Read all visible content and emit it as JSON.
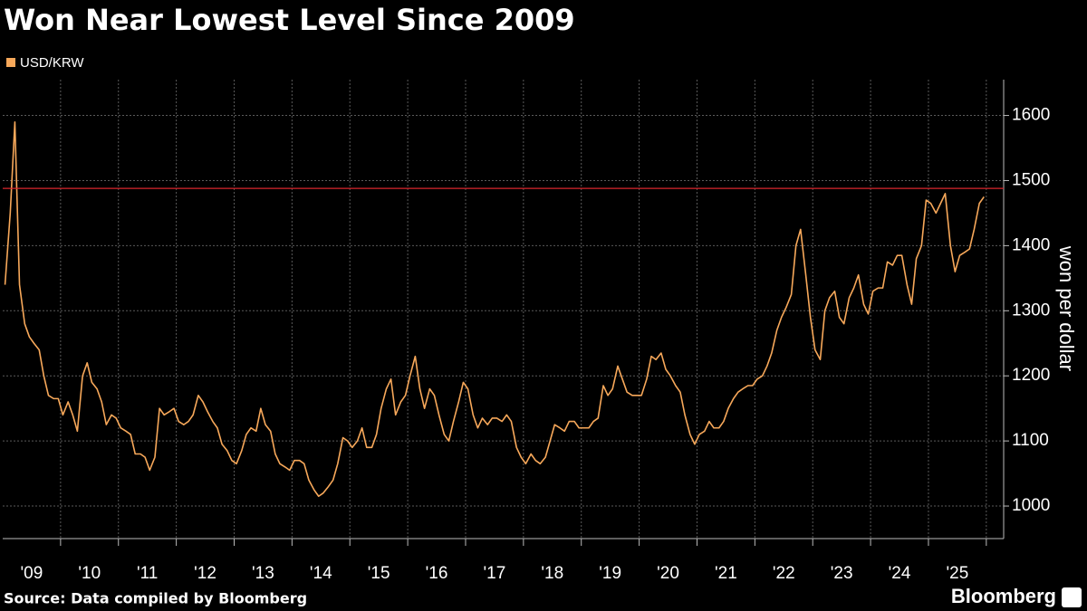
{
  "chart_data": {
    "type": "line",
    "title": "Won Near Lowest Level Since 2009",
    "y_axis_label": "won per dollar",
    "source": "Source: Data compiled by Bloomberg",
    "brand": "Bloomberg",
    "x": [
      2009.04,
      2009.13,
      2009.21,
      2009.29,
      2009.38,
      2009.46,
      2009.54,
      2009.63,
      2009.71,
      2009.79,
      2009.88,
      2009.96,
      2010.04,
      2010.13,
      2010.21,
      2010.29,
      2010.38,
      2010.46,
      2010.54,
      2010.63,
      2010.71,
      2010.79,
      2010.88,
      2010.96,
      2011.04,
      2011.13,
      2011.21,
      2011.29,
      2011.38,
      2011.46,
      2011.54,
      2011.63,
      2011.71,
      2011.79,
      2011.88,
      2011.96,
      2012.04,
      2012.13,
      2012.21,
      2012.29,
      2012.38,
      2012.46,
      2012.54,
      2012.63,
      2012.71,
      2012.79,
      2012.88,
      2012.96,
      2013.04,
      2013.13,
      2013.21,
      2013.29,
      2013.38,
      2013.46,
      2013.54,
      2013.63,
      2013.71,
      2013.79,
      2013.88,
      2013.96,
      2014.04,
      2014.13,
      2014.21,
      2014.29,
      2014.38,
      2014.46,
      2014.54,
      2014.63,
      2014.71,
      2014.79,
      2014.88,
      2014.96,
      2015.04,
      2015.13,
      2015.21,
      2015.29,
      2015.38,
      2015.46,
      2015.54,
      2015.63,
      2015.71,
      2015.79,
      2015.88,
      2015.96,
      2016.04,
      2016.13,
      2016.21,
      2016.29,
      2016.38,
      2016.46,
      2016.54,
      2016.63,
      2016.71,
      2016.79,
      2016.88,
      2016.96,
      2017.04,
      2017.13,
      2017.21,
      2017.29,
      2017.38,
      2017.46,
      2017.54,
      2017.63,
      2017.71,
      2017.79,
      2017.88,
      2017.96,
      2018.04,
      2018.13,
      2018.21,
      2018.29,
      2018.38,
      2018.46,
      2018.54,
      2018.63,
      2018.71,
      2018.79,
      2018.88,
      2018.96,
      2019.04,
      2019.13,
      2019.21,
      2019.29,
      2019.38,
      2019.46,
      2019.54,
      2019.63,
      2019.71,
      2019.79,
      2019.88,
      2019.96,
      2020.04,
      2020.13,
      2020.21,
      2020.29,
      2020.38,
      2020.46,
      2020.54,
      2020.63,
      2020.71,
      2020.79,
      2020.88,
      2020.96,
      2021.04,
      2021.13,
      2021.21,
      2021.29,
      2021.38,
      2021.46,
      2021.54,
      2021.63,
      2021.71,
      2021.79,
      2021.88,
      2021.96,
      2022.04,
      2022.13,
      2022.21,
      2022.29,
      2022.38,
      2022.46,
      2022.54,
      2022.63,
      2022.71,
      2022.79,
      2022.88,
      2022.96,
      2023.04,
      2023.13,
      2023.21,
      2023.29,
      2023.38,
      2023.46,
      2023.54,
      2023.63,
      2023.71,
      2023.79,
      2023.88,
      2023.96,
      2024.04,
      2024.13,
      2024.21,
      2024.29,
      2024.38,
      2024.46,
      2024.54,
      2024.63,
      2024.71,
      2024.79,
      2024.88,
      2024.96,
      2025.04,
      2025.13,
      2025.21,
      2025.29,
      2025.38,
      2025.46,
      2025.54,
      2025.63,
      2025.71,
      2025.79,
      2025.88,
      2025.96
    ],
    "series": [
      {
        "name": "USD/KRW",
        "color": "#f7a85a",
        "values": [
          1340,
          1450,
          1590,
          1340,
          1280,
          1260,
          1250,
          1240,
          1200,
          1170,
          1165,
          1165,
          1140,
          1160,
          1140,
          1115,
          1200,
          1220,
          1190,
          1180,
          1160,
          1125,
          1140,
          1135,
          1120,
          1115,
          1110,
          1080,
          1080,
          1075,
          1055,
          1075,
          1150,
          1140,
          1145,
          1150,
          1130,
          1125,
          1130,
          1140,
          1170,
          1160,
          1145,
          1130,
          1120,
          1095,
          1085,
          1070,
          1065,
          1085,
          1110,
          1120,
          1115,
          1150,
          1125,
          1115,
          1080,
          1065,
          1060,
          1055,
          1070,
          1070,
          1065,
          1040,
          1025,
          1015,
          1020,
          1030,
          1040,
          1065,
          1105,
          1100,
          1090,
          1100,
          1120,
          1090,
          1090,
          1110,
          1150,
          1180,
          1195,
          1140,
          1160,
          1170,
          1200,
          1230,
          1180,
          1150,
          1180,
          1170,
          1140,
          1110,
          1100,
          1130,
          1160,
          1190,
          1180,
          1140,
          1120,
          1135,
          1125,
          1135,
          1135,
          1130,
          1140,
          1130,
          1090,
          1075,
          1065,
          1080,
          1070,
          1065,
          1075,
          1100,
          1125,
          1120,
          1115,
          1130,
          1130,
          1120,
          1120,
          1120,
          1130,
          1135,
          1185,
          1170,
          1180,
          1215,
          1195,
          1175,
          1170,
          1170,
          1170,
          1195,
          1230,
          1225,
          1235,
          1210,
          1200,
          1185,
          1175,
          1140,
          1110,
          1095,
          1110,
          1115,
          1130,
          1120,
          1120,
          1130,
          1150,
          1165,
          1175,
          1180,
          1185,
          1185,
          1195,
          1200,
          1215,
          1235,
          1270,
          1290,
          1305,
          1325,
          1400,
          1425,
          1355,
          1290,
          1240,
          1225,
          1300,
          1320,
          1330,
          1290,
          1280,
          1320,
          1335,
          1355,
          1310,
          1295,
          1330,
          1335,
          1335,
          1375,
          1370,
          1385,
          1385,
          1340,
          1310,
          1380,
          1400,
          1470,
          1465,
          1450,
          1465,
          1480,
          1400,
          1360,
          1385,
          1390,
          1395,
          1425,
          1465,
          1475
        ]
      }
    ],
    "xlim": [
      2009,
      2026.3
    ],
    "xticks": [
      {
        "value": 2009.5,
        "label": "'09"
      },
      {
        "value": 2010.5,
        "label": "'10"
      },
      {
        "value": 2011.5,
        "label": "'11"
      },
      {
        "value": 2012.5,
        "label": "'12"
      },
      {
        "value": 2013.5,
        "label": "'13"
      },
      {
        "value": 2014.5,
        "label": "'14"
      },
      {
        "value": 2015.5,
        "label": "'15"
      },
      {
        "value": 2016.5,
        "label": "'16"
      },
      {
        "value": 2017.5,
        "label": "'17"
      },
      {
        "value": 2018.5,
        "label": "'18"
      },
      {
        "value": 2019.5,
        "label": "'19"
      },
      {
        "value": 2020.5,
        "label": "'20"
      },
      {
        "value": 2021.5,
        "label": "'21"
      },
      {
        "value": 2022.5,
        "label": "'22"
      },
      {
        "value": 2023.5,
        "label": "'23"
      },
      {
        "value": 2024.5,
        "label": "'24"
      },
      {
        "value": 2025.5,
        "label": "'25"
      }
    ],
    "xgrid": [
      2010,
      2011,
      2012,
      2013,
      2014,
      2015,
      2016,
      2017,
      2018,
      2019,
      2020,
      2021,
      2022,
      2023,
      2024,
      2025,
      2026
    ],
    "ylim": [
      950,
      1655
    ],
    "yticks": [
      1000,
      1100,
      1200,
      1300,
      1400,
      1500,
      1600
    ],
    "grid": true,
    "reference_line": {
      "value": 1488,
      "color": "#d9262c"
    }
  }
}
